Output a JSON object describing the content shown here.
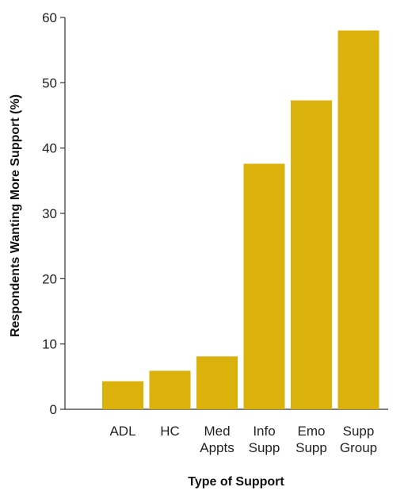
{
  "chart_data": {
    "type": "bar",
    "categories": [
      [
        "ADL"
      ],
      [
        "HC"
      ],
      [
        "Med",
        "Appts"
      ],
      [
        "Info",
        "Supp"
      ],
      [
        "Emo",
        "Supp"
      ],
      [
        "Supp",
        "Group"
      ]
    ],
    "values": [
      4.3,
      5.9,
      8.1,
      37.6,
      47.3,
      58.0
    ],
    "xlabel": "Type of Support",
    "ylabel": "Respondents Wanting More Support (%)",
    "ylim": [
      0,
      60
    ],
    "yticks": [
      0,
      10,
      20,
      30,
      40,
      50,
      60
    ],
    "grid": false,
    "colors": {
      "bar": "#dbb10b",
      "axis": "#333333"
    }
  }
}
